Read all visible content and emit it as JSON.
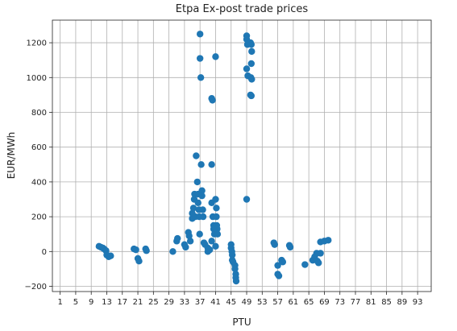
{
  "chart_data": {
    "type": "scatter",
    "title": "Etpa Ex-post trade prices",
    "xlabel": "PTU",
    "ylabel": "EUR/MWh",
    "xlim": [
      -1,
      96.5
    ],
    "ylim": [
      -230,
      1330
    ],
    "xticks": [
      1,
      5,
      9,
      13,
      17,
      21,
      25,
      29,
      33,
      37,
      41,
      45,
      49,
      53,
      57,
      61,
      65,
      69,
      73,
      77,
      81,
      85,
      89,
      93
    ],
    "yticks": [
      -200,
      0,
      200,
      400,
      600,
      800,
      1000,
      1200
    ],
    "grid": true,
    "marker_color": "#1f77b4",
    "points": [
      [
        11,
        30
      ],
      [
        11.5,
        25
      ],
      [
        12,
        20
      ],
      [
        12.3,
        15
      ],
      [
        12.8,
        5
      ],
      [
        13,
        -20
      ],
      [
        13.5,
        -30
      ],
      [
        14,
        -25
      ],
      [
        20,
        15
      ],
      [
        20.5,
        10
      ],
      [
        21,
        -40
      ],
      [
        21.3,
        -55
      ],
      [
        23,
        15
      ],
      [
        23.2,
        5
      ],
      [
        30,
        0
      ],
      [
        31,
        60
      ],
      [
        31.2,
        75
      ],
      [
        33,
        40
      ],
      [
        33.3,
        25
      ],
      [
        34,
        110
      ],
      [
        34.2,
        90
      ],
      [
        34.5,
        60
      ],
      [
        35,
        190
      ],
      [
        35,
        220
      ],
      [
        35.3,
        250
      ],
      [
        35.5,
        300
      ],
      [
        35.6,
        330
      ],
      [
        35.8,
        200
      ],
      [
        36,
        550
      ],
      [
        36.3,
        400
      ],
      [
        36.5,
        330
      ],
      [
        36.5,
        280
      ],
      [
        36.7,
        240
      ],
      [
        36.8,
        200
      ],
      [
        36.9,
        100
      ],
      [
        37,
        1250
      ],
      [
        37,
        1110
      ],
      [
        37.2,
        1000
      ],
      [
        37.3,
        500
      ],
      [
        37.5,
        350
      ],
      [
        37.5,
        320
      ],
      [
        37.7,
        240
      ],
      [
        37.8,
        200
      ],
      [
        38,
        50
      ],
      [
        38.3,
        40
      ],
      [
        39,
        20
      ],
      [
        39,
        0
      ],
      [
        39.5,
        10
      ],
      [
        40,
        880
      ],
      [
        40.2,
        870
      ],
      [
        40,
        500
      ],
      [
        40,
        280
      ],
      [
        40.3,
        200
      ],
      [
        40.5,
        150
      ],
      [
        40.5,
        130
      ],
      [
        40.7,
        100
      ],
      [
        40,
        60
      ],
      [
        41,
        1120
      ],
      [
        41,
        300
      ],
      [
        41.2,
        250
      ],
      [
        41.2,
        200
      ],
      [
        41.3,
        150
      ],
      [
        41.4,
        130
      ],
      [
        41.5,
        100
      ],
      [
        41,
        30
      ],
      [
        45,
        40
      ],
      [
        45,
        20
      ],
      [
        45.2,
        0
      ],
      [
        45.3,
        -20
      ],
      [
        45.3,
        -50
      ],
      [
        45.5,
        -60
      ],
      [
        46,
        -80
      ],
      [
        46,
        -100
      ],
      [
        46.2,
        -130
      ],
      [
        46.2,
        -150
      ],
      [
        46.3,
        -170
      ],
      [
        49,
        1240
      ],
      [
        49,
        1220
      ],
      [
        49.2,
        1190
      ],
      [
        49,
        1050
      ],
      [
        49.3,
        1010
      ],
      [
        49,
        300
      ],
      [
        50,
        1200
      ],
      [
        50.2,
        1190
      ],
      [
        50.3,
        1150
      ],
      [
        50.2,
        1080
      ],
      [
        50.1,
        1000
      ],
      [
        50.3,
        990
      ],
      [
        50,
        900
      ],
      [
        50.2,
        895
      ],
      [
        56,
        50
      ],
      [
        56.2,
        40
      ],
      [
        57,
        -80
      ],
      [
        57,
        -130
      ],
      [
        57.3,
        -140
      ],
      [
        58,
        -50
      ],
      [
        58.3,
        -60
      ],
      [
        60,
        35
      ],
      [
        60.2,
        25
      ],
      [
        64,
        -75
      ],
      [
        66,
        -50
      ],
      [
        66.5,
        -30
      ],
      [
        67,
        -10
      ],
      [
        67.2,
        -55
      ],
      [
        67.5,
        -65
      ],
      [
        68,
        -10
      ],
      [
        68,
        55
      ],
      [
        69,
        60
      ],
      [
        70,
        65
      ]
    ]
  }
}
